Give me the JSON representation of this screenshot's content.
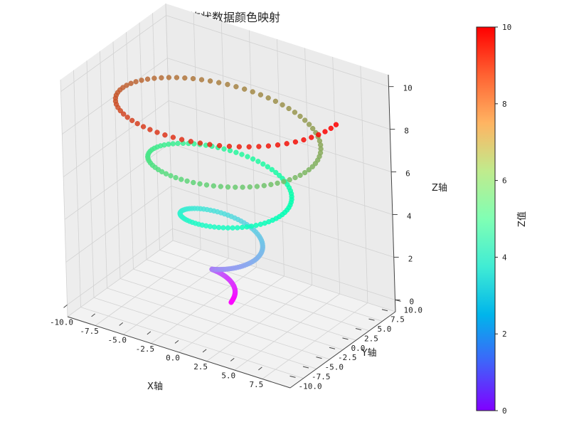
{
  "chart_data": {
    "type": "scatter",
    "title": "螺旋状数据颜色映射",
    "xlabel": "X轴",
    "ylabel": "Y轴",
    "zlabel": "Z轴",
    "colorbar_label": "Z值",
    "colormap": "rainbow",
    "x_ticks": [
      "-10.0",
      "-7.5",
      "-5.0",
      "-2.5",
      "0.0",
      "2.5",
      "5.0",
      "7.5"
    ],
    "y_ticks": [
      "-10.0",
      "-7.5",
      "-5.0",
      "-2.5",
      "0.0",
      "2.5",
      "5.0",
      "7.5",
      "10.0"
    ],
    "z_ticks": [
      "0",
      "2",
      "4",
      "6",
      "8",
      "10"
    ],
    "colorbar_ticks": [
      "0",
      "2",
      "4",
      "6",
      "8",
      "10"
    ],
    "xlim": [
      -10,
      10
    ],
    "ylim": [
      -10,
      10
    ],
    "zlim": [
      0,
      10
    ],
    "spiral": {
      "z_range": [
        0,
        10
      ],
      "radius_range": [
        0,
        10
      ],
      "turns": 4,
      "points": 300
    },
    "grid": true
  }
}
